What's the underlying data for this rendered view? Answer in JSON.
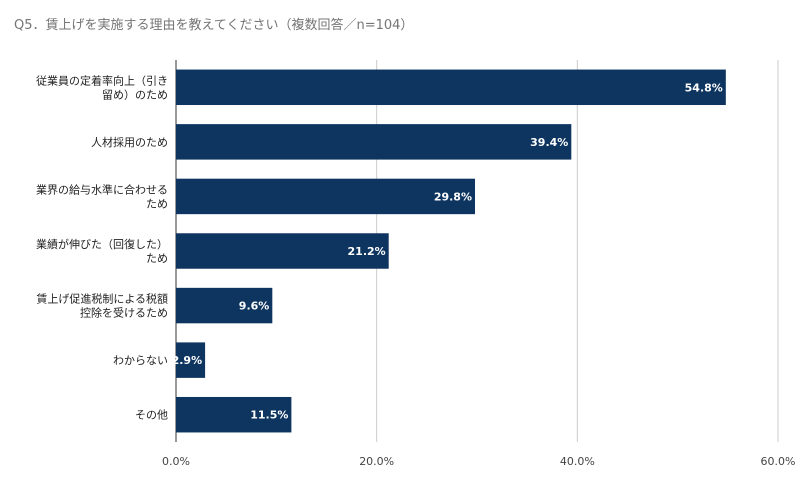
{
  "chart_data": {
    "type": "bar",
    "orientation": "horizontal",
    "title": "Q5．賃上げを実施する理由を教えてください（複数回答／n=104）",
    "xlabel": "",
    "ylabel": "",
    "categories": [
      [
        "従業員の定着率向上（引き",
        "留め）のため"
      ],
      [
        "人材採用のため"
      ],
      [
        "業界の給与水準に合わせる",
        "ため"
      ],
      [
        "業績が伸びた（回復した）",
        "ため"
      ],
      [
        "賃上げ促進税制による税額",
        "控除を受けるため"
      ],
      [
        "わからない"
      ],
      [
        "その他"
      ]
    ],
    "values": [
      54.8,
      39.4,
      29.8,
      21.2,
      9.6,
      2.9,
      11.5
    ],
    "value_labels": [
      "54.8%",
      "39.4%",
      "29.8%",
      "21.2%",
      "9.6%",
      "2.9%",
      "11.5%"
    ],
    "xlim": [
      0,
      60
    ],
    "x_ticks": [
      0,
      20,
      40,
      60
    ],
    "x_tick_labels": [
      "0.0%",
      "20.0%",
      "40.0%",
      "60.0%"
    ],
    "grid": true,
    "bar_color": "#0e3560",
    "grid_color": "#cccccc"
  }
}
